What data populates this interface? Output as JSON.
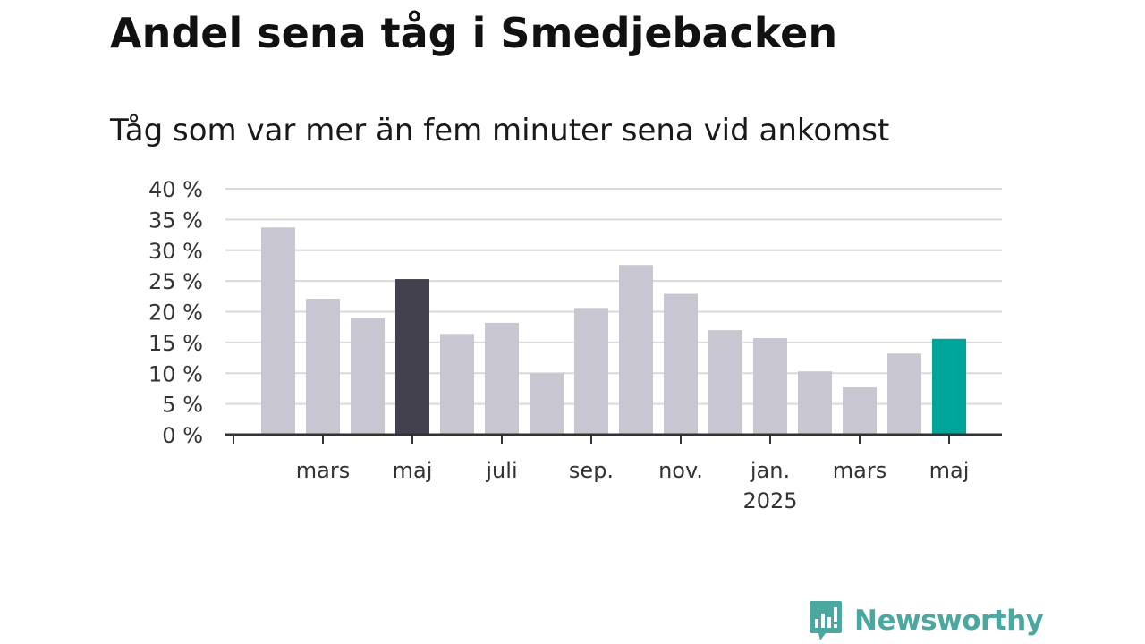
{
  "brand": {
    "name": "Newsworthy"
  },
  "colors": {
    "bar_default": "#c8c7d1",
    "bar_dark": "#43414e",
    "bar_latest": "#00a59a",
    "grid": "#d9d9d9",
    "axis": "#333333",
    "brand": "#4aa8a0"
  },
  "chart_data": {
    "type": "bar",
    "title": "Andel sena tåg i Smedjebacken",
    "subtitle": "Tåg som var mer än fem minuter sena vid ankomst",
    "xlabel": "",
    "ylabel": "",
    "ylim": [
      0,
      40
    ],
    "yticks": [
      0,
      5,
      10,
      15,
      20,
      25,
      30,
      35,
      40
    ],
    "ytick_suffix": " %",
    "grid": true,
    "categories": [
      "2024-01",
      "2024-02",
      "2024-03",
      "2024-04",
      "2024-05",
      "2024-06",
      "2024-07",
      "2024-08",
      "2024-09",
      "2024-10",
      "2024-11",
      "2024-12",
      "2025-01",
      "2025-02",
      "2025-03",
      "2025-04",
      "2025-05"
    ],
    "values": [
      null,
      33.7,
      22.1,
      18.9,
      25.3,
      16.4,
      18.2,
      10.0,
      20.6,
      27.6,
      22.9,
      17.0,
      15.7,
      10.3,
      7.7,
      13.2,
      15.6
    ],
    "highlight": {
      "2024-05": "bar_dark",
      "2025-05": "bar_latest"
    },
    "xtick_labels": [
      {
        "month": "2024-03",
        "lines": [
          "mars"
        ]
      },
      {
        "month": "2024-05",
        "lines": [
          "maj"
        ]
      },
      {
        "month": "2024-07",
        "lines": [
          "juli"
        ]
      },
      {
        "month": "2024-09",
        "lines": [
          "sep."
        ]
      },
      {
        "month": "2024-11",
        "lines": [
          "nov."
        ]
      },
      {
        "month": "2025-01",
        "lines": [
          "jan.",
          "2025"
        ]
      },
      {
        "month": "2025-03",
        "lines": [
          "mars"
        ]
      },
      {
        "month": "2025-05",
        "lines": [
          "maj"
        ]
      }
    ]
  }
}
